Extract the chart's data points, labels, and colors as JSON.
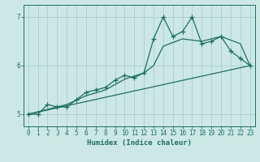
{
  "xlabel": "Humidex (Indice chaleur)",
  "ylabel": "",
  "bg_color": "#cce8e4",
  "grid_color": "#aacfcc",
  "line_color": "#1e6e60",
  "xlim": [
    -0.5,
    23.5
  ],
  "ylim": [
    4.75,
    7.25
  ],
  "yticks": [
    5,
    6,
    7
  ],
  "xticks": [
    0,
    1,
    2,
    3,
    4,
    5,
    6,
    7,
    8,
    9,
    10,
    11,
    12,
    13,
    14,
    15,
    16,
    17,
    18,
    19,
    20,
    21,
    22,
    23
  ],
  "main_x": [
    0,
    1,
    2,
    3,
    4,
    5,
    6,
    7,
    8,
    9,
    10,
    11,
    12,
    13,
    14,
    15,
    16,
    17,
    18,
    19,
    20,
    21,
    22,
    23
  ],
  "main_y": [
    5.0,
    5.0,
    5.2,
    5.15,
    5.15,
    5.3,
    5.45,
    5.5,
    5.55,
    5.7,
    5.8,
    5.75,
    5.85,
    6.55,
    7.0,
    6.6,
    6.7,
    7.0,
    6.45,
    6.5,
    6.6,
    6.3,
    6.15,
    6.0
  ],
  "trend1_x": [
    0,
    23
  ],
  "trend1_y": [
    5.0,
    6.0
  ],
  "trend2_x": [
    0,
    2,
    4,
    6,
    8,
    10,
    12,
    13,
    14,
    16,
    18,
    20,
    22,
    23
  ],
  "trend2_y": [
    5.0,
    5.1,
    5.2,
    5.38,
    5.5,
    5.72,
    5.85,
    6.0,
    6.4,
    6.55,
    6.5,
    6.6,
    6.45,
    6.0
  ],
  "marker_size": 4,
  "line_width": 0.9
}
